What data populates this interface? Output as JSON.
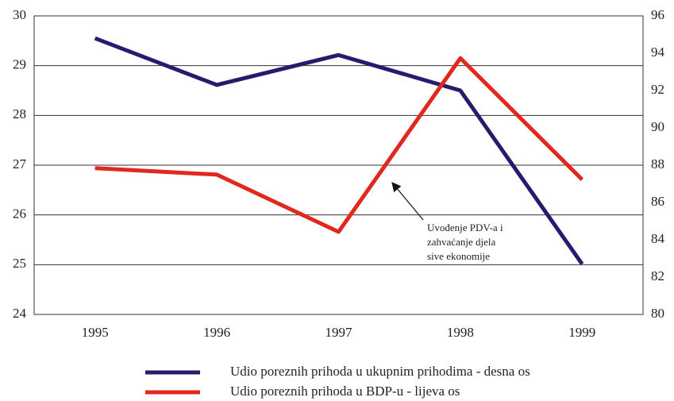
{
  "chart_data": {
    "type": "line",
    "categories": [
      "1995",
      "1996",
      "1997",
      "1998",
      "1999"
    ],
    "series": [
      {
        "name": "Udio poreznih prihoda u ukupnim prihodima - desna os",
        "color": "#2a1a6e",
        "axis": "y2",
        "values": [
          94.8,
          92.3,
          93.9,
          92.0,
          82.7
        ]
      },
      {
        "name": "Udio poreznih prihoda u BDP-u - lijeva os",
        "color": "#e0281e",
        "values": [
          26.94,
          26.81,
          25.66,
          29.15,
          26.71
        ]
      }
    ],
    "ylim": [
      24,
      30
    ],
    "yticks": [
      24,
      25,
      26,
      27,
      28,
      29,
      30
    ],
    "y2lim": [
      80,
      96
    ],
    "y2ticks": [
      80,
      82,
      84,
      86,
      88,
      90,
      92,
      94,
      96
    ],
    "grid": true,
    "annotation": [
      "Uvođenje PDV-a i",
      "zahvaćanje djela",
      "sive ekonomije"
    ]
  }
}
